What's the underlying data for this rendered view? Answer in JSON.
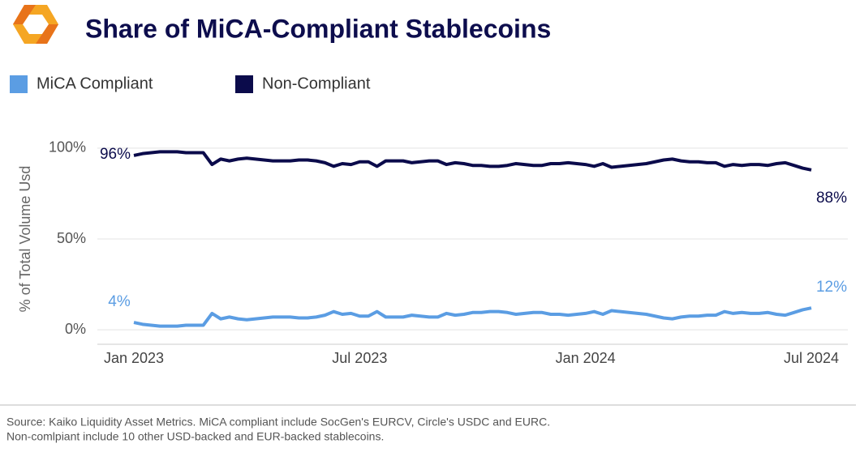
{
  "chart_data": {
    "type": "line",
    "title": "Share of MiCA-Compliant Stablecoins",
    "ylabel": "% of Total Volume Usd",
    "categories": [
      "Jan 2023",
      null,
      null,
      null,
      null,
      null,
      null,
      null,
      null,
      null,
      null,
      null,
      null,
      null,
      null,
      null,
      null,
      null,
      null,
      null,
      null,
      null,
      null,
      null,
      null,
      null,
      "Jul 2023",
      null,
      null,
      null,
      null,
      null,
      null,
      null,
      null,
      null,
      null,
      null,
      null,
      null,
      null,
      null,
      null,
      null,
      null,
      null,
      null,
      null,
      null,
      null,
      null,
      null,
      "Jan 2024",
      null,
      null,
      null,
      null,
      null,
      null,
      null,
      null,
      null,
      null,
      null,
      null,
      null,
      null,
      null,
      null,
      null,
      null,
      null,
      null,
      null,
      null,
      null,
      null,
      null,
      "Jul 2024"
    ],
    "series": [
      {
        "name": "MiCA Compliant",
        "color": "#5b9de3",
        "values": [
          4,
          3,
          2.5,
          2,
          2,
          2,
          2.5,
          2.5,
          2.5,
          9,
          6,
          7,
          6,
          5.5,
          6,
          6.5,
          7,
          7,
          7,
          6.5,
          6.5,
          7,
          8,
          10,
          8.5,
          9,
          7.5,
          7.5,
          10,
          7,
          7,
          7,
          8,
          7.5,
          7,
          7,
          9,
          8,
          8.5,
          9.5,
          9.5,
          10,
          10,
          9.5,
          8.5,
          9,
          9.5,
          9.5,
          8.5,
          8.5,
          8,
          8.5,
          9,
          10,
          8.5,
          10.5,
          10,
          9.5,
          9,
          8.5,
          7.5,
          6.5,
          6,
          7,
          7.5,
          7.5,
          8,
          8,
          10,
          9,
          9.5,
          9,
          9,
          9.5,
          8.5,
          8,
          9.5,
          11,
          12
        ],
        "value_labels": [
          "4%",
          null,
          null,
          null,
          null,
          null,
          null,
          null,
          null,
          null,
          null,
          null,
          null,
          null,
          null,
          null,
          null,
          null,
          null,
          null,
          null,
          null,
          null,
          null,
          null,
          null,
          null,
          null,
          null,
          null,
          null,
          null,
          null,
          null,
          null,
          null,
          null,
          null,
          null,
          null,
          null,
          null,
          null,
          null,
          null,
          null,
          null,
          null,
          null,
          null,
          null,
          null,
          null,
          null,
          null,
          null,
          null,
          null,
          null,
          null,
          null,
          null,
          null,
          null,
          null,
          null,
          null,
          null,
          null,
          null,
          null,
          null,
          null,
          null,
          null,
          null,
          null,
          null,
          "12%"
        ]
      },
      {
        "name": "Non-Compliant",
        "color": "#0b0b4b",
        "values": [
          96,
          97,
          97.5,
          98,
          98,
          98,
          97.5,
          97.5,
          97.5,
          91,
          94,
          93,
          94,
          94.5,
          94,
          93.5,
          93,
          93,
          93,
          93.5,
          93.5,
          93,
          92,
          90,
          91.5,
          91,
          92.5,
          92.5,
          90,
          93,
          93,
          93,
          92,
          92.5,
          93,
          93,
          91,
          92,
          91.5,
          90.5,
          90.5,
          90,
          90,
          90.5,
          91.5,
          91,
          90.5,
          90.5,
          91.5,
          91.5,
          92,
          91.5,
          91,
          90,
          91.5,
          89.5,
          90,
          90.5,
          91,
          91.5,
          92.5,
          93.5,
          94,
          93,
          92.5,
          92.5,
          92,
          92,
          90,
          91,
          90.5,
          91,
          91,
          90.5,
          91.5,
          92,
          90.5,
          89,
          88
        ],
        "value_labels": [
          "96%",
          null,
          null,
          null,
          null,
          null,
          null,
          null,
          null,
          null,
          null,
          null,
          null,
          null,
          null,
          null,
          null,
          null,
          null,
          null,
          null,
          null,
          null,
          null,
          null,
          null,
          null,
          null,
          null,
          null,
          null,
          null,
          null,
          null,
          null,
          null,
          null,
          null,
          null,
          null,
          null,
          null,
          null,
          null,
          null,
          null,
          null,
          null,
          null,
          null,
          null,
          null,
          null,
          null,
          null,
          null,
          null,
          null,
          null,
          null,
          null,
          null,
          null,
          null,
          null,
          null,
          null,
          null,
          null,
          null,
          null,
          null,
          null,
          null,
          null,
          null,
          null,
          null,
          "88%"
        ]
      }
    ],
    "ylim": [
      -8,
      108
    ],
    "yticks": [
      {
        "value": 0,
        "label": "0%"
      },
      {
        "value": 50,
        "label": "50%"
      },
      {
        "value": 100,
        "label": "100%"
      }
    ],
    "grid": true,
    "source": [
      "Source: Kaiko Liquidity Asset Metrics. MiCA compliant include SocGen's EURCV, Circle's USDC and EURC.",
      "Non-comlpiant include 10 other USD-backed and EUR-backed stablecoins."
    ]
  }
}
